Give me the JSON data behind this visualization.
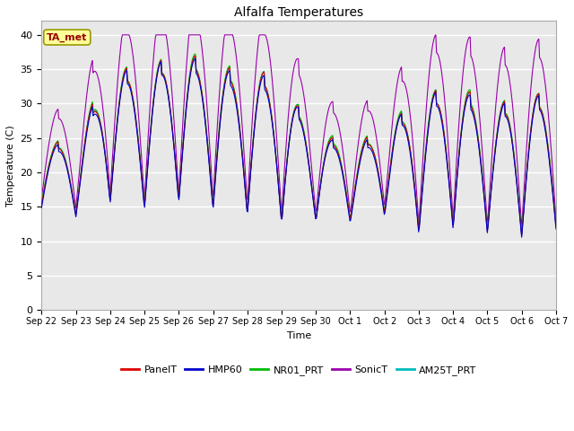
{
  "title": "Alfalfa Temperatures",
  "xlabel": "Time",
  "ylabel": "Temperature (C)",
  "annotation": "TA_met",
  "annotation_color": "#990000",
  "annotation_bg": "#ffff99",
  "annotation_border": "#999900",
  "ylim": [
    0,
    42
  ],
  "yticks": [
    0,
    5,
    10,
    15,
    20,
    25,
    30,
    35,
    40
  ],
  "legend": [
    "PanelT",
    "HMP60",
    "NR01_PRT",
    "SonicT",
    "AM25T_PRT"
  ],
  "line_colors": [
    "#dd0000",
    "#0000cc",
    "#00bb00",
    "#9900aa",
    "#00bbbb"
  ],
  "bg_color": "#e8e8e8",
  "fig_bg": "#ffffff",
  "xtick_labels": [
    "Sep 22",
    "Sep 23",
    "Sep 24",
    "Sep 25",
    "Sep 26",
    "Sep 27",
    "Sep 28",
    "Sep 29",
    "Sep 30",
    "Oct 1",
    "Oct 2",
    "Oct 3",
    "Oct 4",
    "Oct 5",
    "Oct 6",
    "Oct 7"
  ],
  "n_points": 720
}
